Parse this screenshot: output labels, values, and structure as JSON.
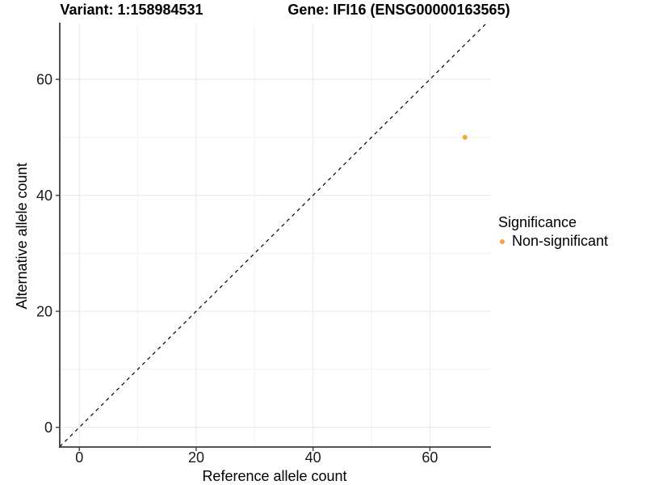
{
  "figure": {
    "title_left": "Variant: 1:158984531",
    "title_right": "Gene: IFI16 (ENSG00000163565)"
  },
  "chart_data": {
    "type": "scatter",
    "title": "Variant: 1:158984531  Gene: IFI16 (ENSG00000163565)",
    "xlabel": "Reference allele count",
    "ylabel": "Alternative allele count",
    "xlim": [
      -3.35,
      70.45
    ],
    "ylim": [
      -3.4,
      69.5
    ],
    "xticks": [
      0,
      20,
      40,
      60
    ],
    "yticks": [
      0,
      20,
      40,
      60
    ],
    "xminor": [
      10,
      30,
      50
    ],
    "yminor": [
      10,
      30,
      50
    ],
    "grid": true,
    "diagonal_line": {
      "type": "identity y=x",
      "style": "dashed",
      "color": "#000000"
    },
    "series": [
      {
        "name": "Non-significant",
        "color": "#F9A43B",
        "points": [
          {
            "x": 66,
            "y": 50
          }
        ]
      }
    ],
    "legend": {
      "title": "Significance",
      "position": "right",
      "entries": [
        {
          "label": "Non-significant",
          "color": "#F9A43B"
        }
      ]
    },
    "style": {
      "background": "#FFFFFF",
      "grid_major_color": "#E7E7E7",
      "grid_minor_color": "#F1F1F1",
      "axis_line_color": "#3C3C3C",
      "tick_label_color": "#1A1A1A",
      "text_color": "#000000"
    }
  }
}
